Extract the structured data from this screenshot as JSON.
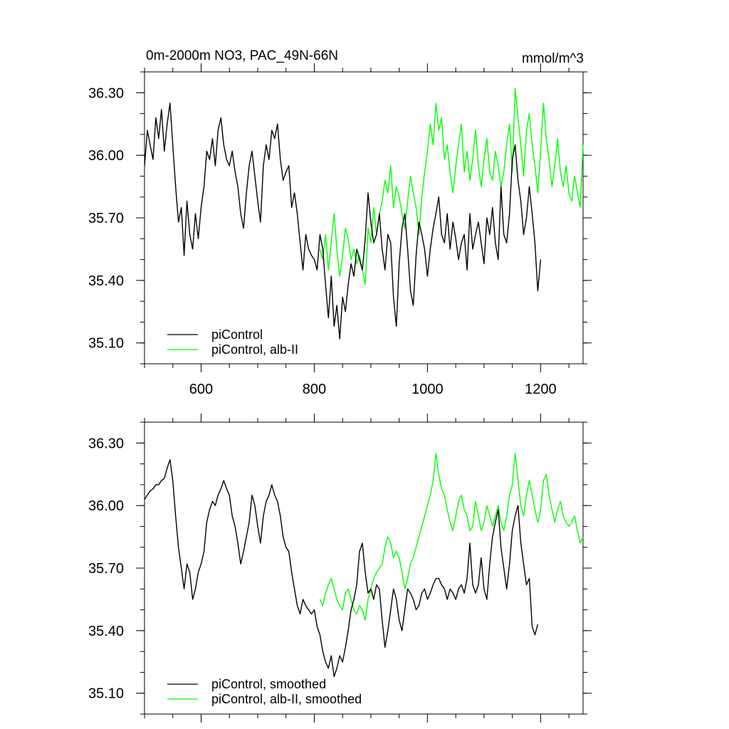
{
  "chart_data": [
    {
      "type": "line",
      "title": "0m-2000m NO3, PAC_49N-66N",
      "units": "mmol/m^3",
      "xlim": [
        500,
        1275
      ],
      "ylim": [
        35.0,
        36.4
      ],
      "xticks": [
        600,
        800,
        1000,
        1200
      ],
      "xtick_labels": [
        "600",
        "800",
        "1000",
        "1200"
      ],
      "yticks": [
        35.1,
        35.4,
        35.7,
        36.0,
        36.3
      ],
      "ytick_labels": [
        "35.10",
        "35.40",
        "35.70",
        "36.00",
        "36.30"
      ],
      "grid": false,
      "legend_position": "bottom-left",
      "series": [
        {
          "name": "piControl",
          "color": "#000000",
          "x": [
            500,
            505,
            510,
            515,
            520,
            525,
            530,
            535,
            540,
            545,
            550,
            555,
            560,
            565,
            570,
            575,
            580,
            585,
            590,
            595,
            600,
            605,
            610,
            615,
            620,
            625,
            630,
            635,
            640,
            645,
            650,
            655,
            660,
            665,
            670,
            675,
            680,
            685,
            690,
            695,
            700,
            705,
            710,
            715,
            720,
            725,
            730,
            735,
            740,
            745,
            750,
            755,
            760,
            765,
            770,
            775,
            780,
            785,
            790,
            795,
            800,
            805,
            810,
            815,
            820,
            825,
            830,
            835,
            840,
            845,
            850,
            855,
            860,
            865,
            870,
            875,
            880,
            885,
            890,
            895,
            900,
            905,
            910,
            915,
            920,
            925,
            930,
            935,
            940,
            945,
            950,
            955,
            960,
            965,
            970,
            975,
            980,
            985,
            990,
            995,
            1000,
            1005,
            1010,
            1015,
            1020,
            1025,
            1030,
            1035,
            1040,
            1045,
            1050,
            1055,
            1060,
            1065,
            1070,
            1075,
            1080,
            1085,
            1090,
            1095,
            1100,
            1105,
            1110,
            1115,
            1120,
            1125,
            1130,
            1135,
            1140,
            1145,
            1150,
            1155,
            1160,
            1165,
            1170,
            1175,
            1180,
            1185,
            1190,
            1195,
            1200
          ],
          "values": [
            35.95,
            36.12,
            36.05,
            35.98,
            36.18,
            36.08,
            36.22,
            36.02,
            36.15,
            36.25,
            36.05,
            35.85,
            35.68,
            35.75,
            35.52,
            35.78,
            35.62,
            35.55,
            35.72,
            35.6,
            35.75,
            35.85,
            36.02,
            35.98,
            36.08,
            35.95,
            36.12,
            36.18,
            36.05,
            35.98,
            35.95,
            36.02,
            35.92,
            35.85,
            35.72,
            35.65,
            35.82,
            35.95,
            36.02,
            35.9,
            35.78,
            35.68,
            35.95,
            36.05,
            35.98,
            36.12,
            36.08,
            36.15,
            35.98,
            35.88,
            35.92,
            35.95,
            35.75,
            35.82,
            35.72,
            35.58,
            35.45,
            35.62,
            35.55,
            35.52,
            35.5,
            35.45,
            35.62,
            35.55,
            35.38,
            35.22,
            35.42,
            35.18,
            35.28,
            35.12,
            35.32,
            35.25,
            35.38,
            35.48,
            35.42,
            35.55,
            35.5,
            35.45,
            35.6,
            35.82,
            35.68,
            35.58,
            35.62,
            35.72,
            35.55,
            35.45,
            35.62,
            35.58,
            35.32,
            35.18,
            35.48,
            35.65,
            35.72,
            35.55,
            35.35,
            35.28,
            35.52,
            35.68,
            35.62,
            35.55,
            35.42,
            35.55,
            35.65,
            35.72,
            35.8,
            35.62,
            35.58,
            35.72,
            35.55,
            35.68,
            35.6,
            35.5,
            35.58,
            35.62,
            35.45,
            35.72,
            35.55,
            35.62,
            35.68,
            35.58,
            35.48,
            35.7,
            35.62,
            35.75,
            35.58,
            35.5,
            35.85,
            35.62,
            35.58,
            35.72,
            35.98,
            36.05,
            35.88,
            35.78,
            35.62,
            35.7,
            35.85,
            35.72,
            35.58,
            35.35,
            35.5
          ]
        },
        {
          "name": "piControl, alb-II",
          "color": "#00ff00",
          "x": [
            810,
            815,
            820,
            825,
            830,
            835,
            840,
            845,
            850,
            855,
            860,
            865,
            870,
            875,
            880,
            885,
            890,
            895,
            900,
            905,
            910,
            915,
            920,
            925,
            930,
            935,
            940,
            945,
            950,
            955,
            960,
            965,
            970,
            975,
            980,
            985,
            990,
            995,
            1000,
            1005,
            1010,
            1015,
            1020,
            1025,
            1030,
            1035,
            1040,
            1045,
            1050,
            1055,
            1060,
            1065,
            1070,
            1075,
            1080,
            1085,
            1090,
            1095,
            1100,
            1105,
            1110,
            1115,
            1120,
            1125,
            1130,
            1135,
            1140,
            1145,
            1150,
            1155,
            1160,
            1165,
            1170,
            1175,
            1180,
            1185,
            1190,
            1195,
            1200,
            1205,
            1210,
            1215,
            1220,
            1225,
            1230,
            1235,
            1240,
            1245,
            1250,
            1255,
            1260,
            1265,
            1270,
            1275
          ],
          "values": [
            35.55,
            35.5,
            35.62,
            35.45,
            35.58,
            35.72,
            35.55,
            35.42,
            35.52,
            35.65,
            35.6,
            35.5,
            35.55,
            35.48,
            35.52,
            35.45,
            35.38,
            35.65,
            35.58,
            35.75,
            35.62,
            35.72,
            35.78,
            35.88,
            35.82,
            35.95,
            35.75,
            35.85,
            35.8,
            35.72,
            35.65,
            35.78,
            35.9,
            35.82,
            35.75,
            35.62,
            35.8,
            35.92,
            36.02,
            36.15,
            36.05,
            36.25,
            36.12,
            36.18,
            35.98,
            36.05,
            35.92,
            35.82,
            35.95,
            36.05,
            36.15,
            35.92,
            36.02,
            35.88,
            35.98,
            36.12,
            35.95,
            35.85,
            35.98,
            36.08,
            35.92,
            35.88,
            36.02,
            35.95,
            35.85,
            35.92,
            36.05,
            36.15,
            35.92,
            36.32,
            36.18,
            36.05,
            35.9,
            36.12,
            36.2,
            36.05,
            35.95,
            35.82,
            36.02,
            36.25,
            36.08,
            35.98,
            35.85,
            35.95,
            36.08,
            35.92,
            35.85,
            35.95,
            35.82,
            35.78,
            35.9,
            35.82,
            35.75,
            36.05
          ]
        }
      ]
    },
    {
      "type": "line",
      "xlim": [
        500,
        1275
      ],
      "ylim": [
        35.0,
        36.4
      ],
      "xticks": [
        600,
        800,
        1000,
        1200
      ],
      "yticks": [
        35.1,
        35.4,
        35.7,
        36.0,
        36.3
      ],
      "ytick_labels": [
        "35.10",
        "35.40",
        "35.70",
        "36.00",
        "36.30"
      ],
      "grid": false,
      "legend_position": "bottom-left",
      "series": [
        {
          "name": "piControl, smoothed",
          "color": "#000000",
          "x": [
            500,
            505,
            510,
            515,
            520,
            525,
            530,
            535,
            540,
            545,
            550,
            555,
            560,
            565,
            570,
            575,
            580,
            585,
            590,
            595,
            600,
            605,
            610,
            615,
            620,
            625,
            630,
            635,
            640,
            645,
            650,
            655,
            660,
            665,
            670,
            675,
            680,
            685,
            690,
            695,
            700,
            705,
            710,
            715,
            720,
            725,
            730,
            735,
            740,
            745,
            750,
            755,
            760,
            765,
            770,
            775,
            780,
            785,
            790,
            795,
            800,
            805,
            810,
            815,
            820,
            825,
            830,
            835,
            840,
            845,
            850,
            855,
            860,
            865,
            870,
            875,
            880,
            885,
            890,
            895,
            900,
            905,
            910,
            915,
            920,
            925,
            930,
            935,
            940,
            945,
            950,
            955,
            960,
            965,
            970,
            975,
            980,
            985,
            990,
            995,
            1000,
            1005,
            1010,
            1015,
            1020,
            1025,
            1030,
            1035,
            1040,
            1045,
            1050,
            1055,
            1060,
            1065,
            1070,
            1075,
            1080,
            1085,
            1090,
            1095,
            1100,
            1105,
            1110,
            1115,
            1120,
            1125,
            1130,
            1135,
            1140,
            1145,
            1150,
            1155,
            1160,
            1165,
            1170,
            1175,
            1180,
            1185,
            1190,
            1195
          ],
          "values": [
            36.03,
            36.05,
            36.07,
            36.08,
            36.1,
            36.1,
            36.12,
            36.13,
            36.18,
            36.22,
            36.12,
            35.95,
            35.8,
            35.7,
            35.6,
            35.72,
            35.68,
            35.55,
            35.6,
            35.68,
            35.72,
            35.78,
            35.92,
            35.98,
            36.02,
            36.0,
            36.05,
            36.08,
            36.12,
            36.08,
            36.05,
            35.95,
            35.9,
            35.82,
            35.72,
            35.78,
            35.85,
            35.92,
            36.05,
            36.0,
            35.9,
            35.82,
            35.95,
            36.02,
            36.05,
            36.1,
            36.05,
            36.02,
            35.95,
            35.85,
            35.8,
            35.78,
            35.68,
            35.6,
            35.52,
            35.48,
            35.55,
            35.52,
            35.5,
            35.48,
            35.5,
            35.42,
            35.38,
            35.3,
            35.25,
            35.22,
            35.28,
            35.18,
            35.22,
            35.28,
            35.25,
            35.32,
            35.4,
            35.5,
            35.55,
            35.62,
            35.78,
            35.82,
            35.68,
            35.58,
            35.6,
            35.55,
            35.62,
            35.6,
            35.45,
            35.32,
            35.4,
            35.5,
            35.6,
            35.55,
            35.45,
            35.4,
            35.5,
            35.6,
            35.58,
            35.55,
            35.5,
            35.52,
            35.58,
            35.6,
            35.55,
            35.58,
            35.62,
            35.65,
            35.65,
            35.62,
            35.6,
            35.55,
            35.6,
            35.58,
            35.55,
            35.6,
            35.62,
            35.58,
            35.65,
            35.82,
            35.62,
            35.58,
            35.62,
            35.75,
            35.6,
            35.55,
            35.72,
            35.85,
            35.92,
            35.98,
            35.8,
            35.7,
            35.6,
            35.72,
            35.88,
            35.95,
            36.0,
            35.82,
            35.72,
            35.62,
            35.65,
            35.42,
            35.38,
            35.43
          ]
        },
        {
          "name": "piControl, alb-II, smoothed",
          "color": "#00ff00",
          "x": [
            810,
            815,
            820,
            825,
            830,
            835,
            840,
            845,
            850,
            855,
            860,
            865,
            870,
            875,
            880,
            885,
            890,
            895,
            900,
            905,
            910,
            915,
            920,
            925,
            930,
            935,
            940,
            945,
            950,
            955,
            960,
            965,
            970,
            975,
            980,
            985,
            990,
            995,
            1000,
            1005,
            1010,
            1015,
            1020,
            1025,
            1030,
            1035,
            1040,
            1045,
            1050,
            1055,
            1060,
            1065,
            1070,
            1075,
            1080,
            1085,
            1090,
            1095,
            1100,
            1105,
            1110,
            1115,
            1120,
            1125,
            1130,
            1135,
            1140,
            1145,
            1150,
            1155,
            1160,
            1165,
            1170,
            1175,
            1180,
            1185,
            1190,
            1195,
            1200,
            1205,
            1210,
            1215,
            1220,
            1225,
            1230,
            1235,
            1240,
            1245,
            1250,
            1255,
            1260,
            1265,
            1270,
            1275
          ],
          "values": [
            35.55,
            35.52,
            35.58,
            35.62,
            35.65,
            35.6,
            35.55,
            35.52,
            35.5,
            35.58,
            35.6,
            35.55,
            35.5,
            35.48,
            35.52,
            35.5,
            35.45,
            35.55,
            35.6,
            35.65,
            35.68,
            35.7,
            35.72,
            35.8,
            35.85,
            35.82,
            35.75,
            35.78,
            35.75,
            35.68,
            35.6,
            35.65,
            35.72,
            35.75,
            35.8,
            35.85,
            35.9,
            35.95,
            36.0,
            36.05,
            36.12,
            36.25,
            36.15,
            36.08,
            36.05,
            35.98,
            35.92,
            35.88,
            35.95,
            36.02,
            36.05,
            35.98,
            35.95,
            35.88,
            35.9,
            36.02,
            35.95,
            35.88,
            35.92,
            36.0,
            35.95,
            35.9,
            35.95,
            36.0,
            35.92,
            35.88,
            35.95,
            36.05,
            36.1,
            36.25,
            36.12,
            36.0,
            35.95,
            36.05,
            36.12,
            36.05,
            35.98,
            35.92,
            35.98,
            36.12,
            36.15,
            36.05,
            35.98,
            35.92,
            35.98,
            36.02,
            35.95,
            35.92,
            35.9,
            35.92,
            35.95,
            35.88,
            35.82,
            35.85
          ]
        }
      ]
    }
  ]
}
